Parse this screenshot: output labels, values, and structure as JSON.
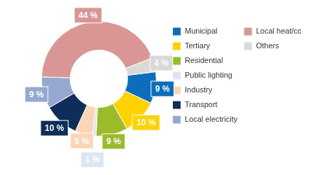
{
  "chart_data": {
    "type": "doughnut",
    "categories": [
      "Municipal",
      "Tertiary",
      "Residential",
      "Public lighting",
      "Industry",
      "Transport",
      "Local electricity",
      "Local heat/cold",
      "Others"
    ],
    "values": [
      9,
      10,
      9,
      1,
      5,
      10,
      9,
      44,
      4
    ],
    "value_labels": [
      "9 %",
      "10 %",
      "9 %",
      "1 %",
      "5 %",
      "10 %",
      "9 %",
      "44 %",
      "4 %"
    ],
    "colors": [
      "#0a6ebd",
      "#ffd200",
      "#9bbb2a",
      "#dce6f2",
      "#fcd5b4",
      "#0f2d5a",
      "#95a8d0",
      "#d99694",
      "#d9d9d9"
    ],
    "legend": "right",
    "data_labels": true
  }
}
